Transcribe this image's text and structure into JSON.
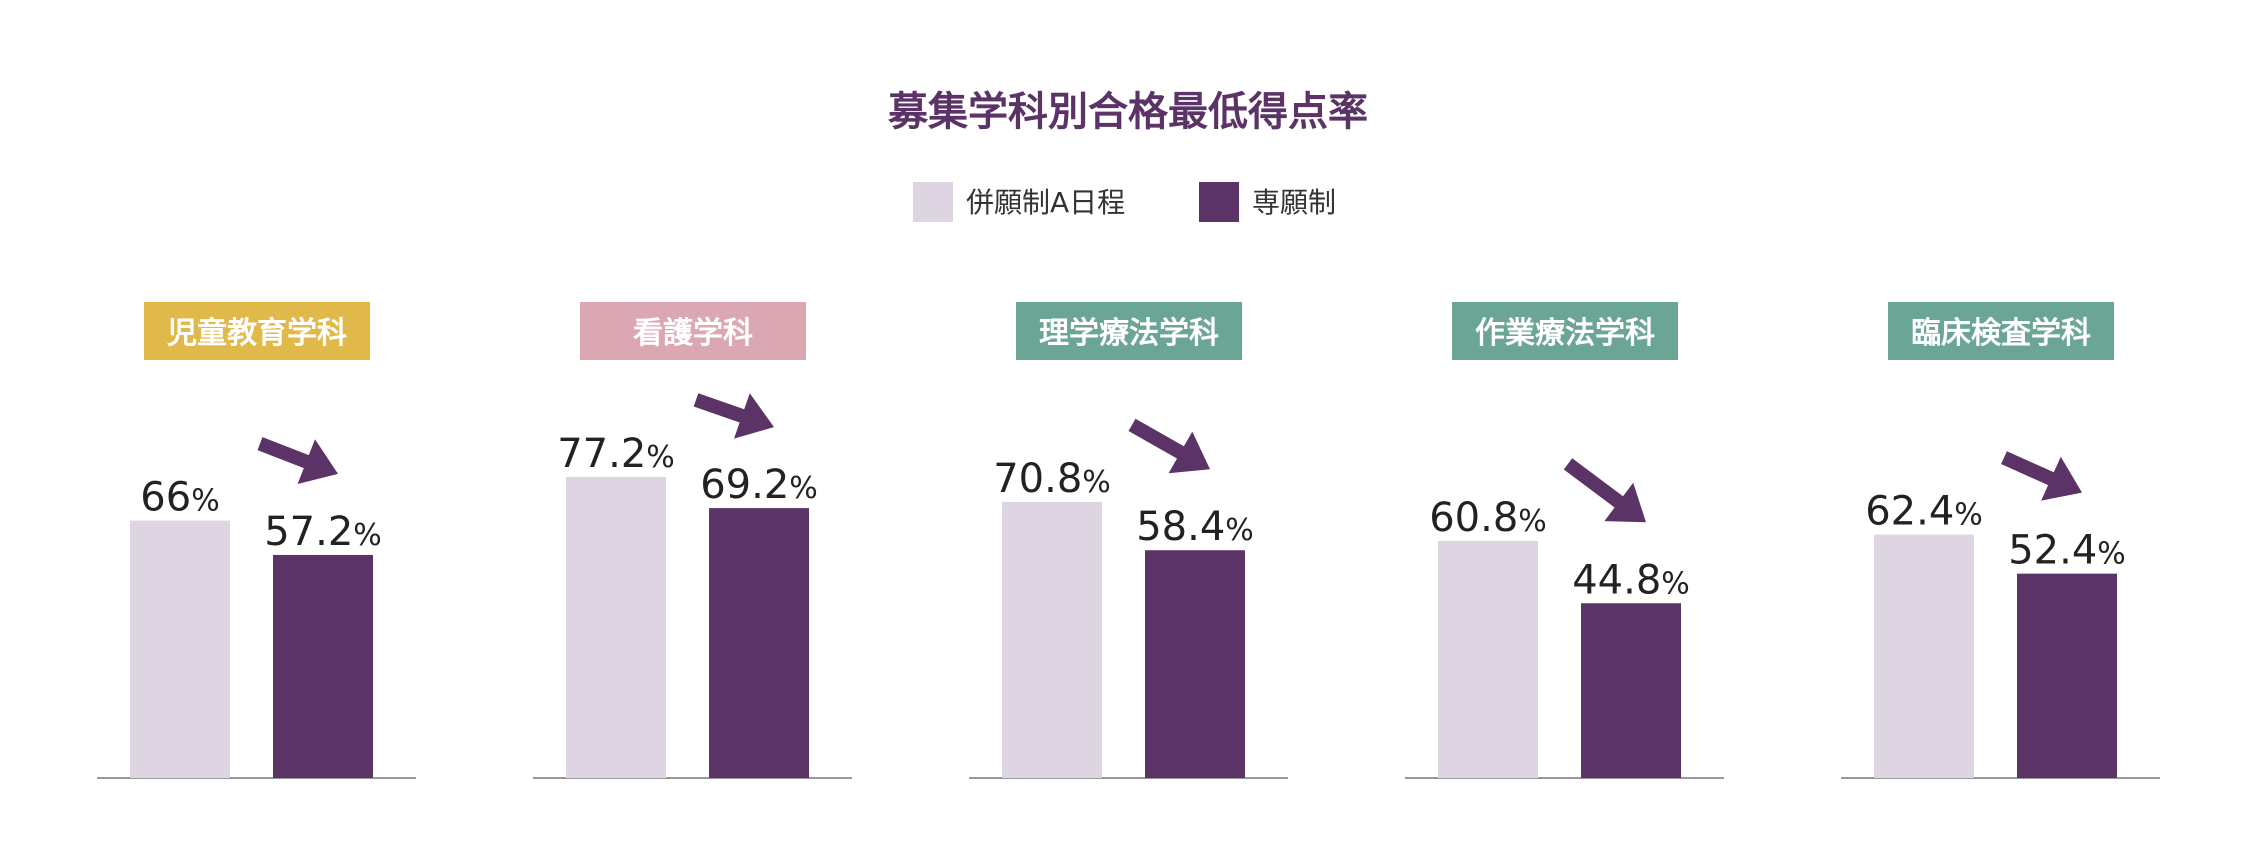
{
  "chart_data": {
    "type": "bar",
    "title": "募集学科別合格最低得点率",
    "unit": "%",
    "legend": [
      "併願制A日程",
      "専願制"
    ],
    "legend_position": "top-center",
    "colors": {
      "title": "#5b3366",
      "series_a": "#ddd5e1",
      "series_b": "#5b3366",
      "arrow": "#5b3366",
      "baseline": "#999999"
    },
    "groups": [
      {
        "label": "児童教育学科",
        "color": "#e0b94a",
        "values": [
          "66",
          "57.2"
        ]
      },
      {
        "label": "看護学科",
        "color": "#dba7b3",
        "values": [
          "77.2",
          "69.2"
        ]
      },
      {
        "label": "理学療法学科",
        "color": "#6aa595",
        "values": [
          "70.8",
          "58.4"
        ]
      },
      {
        "label": "作業療法学科",
        "color": "#6aa595",
        "values": [
          "60.8",
          "44.8"
        ]
      },
      {
        "label": "臨床検査学科",
        "color": "#6aa595",
        "values": [
          "62.4",
          "52.4"
        ]
      }
    ]
  }
}
